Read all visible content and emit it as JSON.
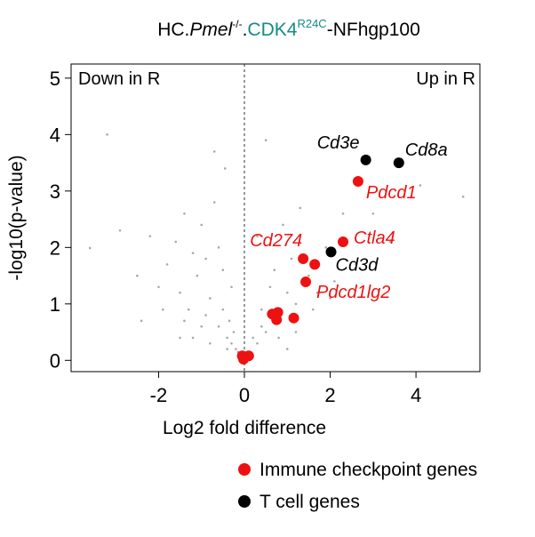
{
  "chart_data": {
    "type": "scatter",
    "title_parts": [
      "HC.",
      "Pmel",
      "-/-",
      ".",
      "CDK4",
      "R24C",
      "-NFhgp100"
    ],
    "title_colors": [
      "#000000",
      "#000000",
      "#000000",
      "#000000",
      "#138c84",
      "#138c84",
      "#000000"
    ],
    "xlabel": "Log2 fold difference",
    "ylabel": "-log10(p-value)",
    "annotations": [
      "Down in R",
      "Up in R"
    ],
    "xlim": [
      -4.04,
      5.49
    ],
    "ylim": [
      -0.2,
      5.25
    ],
    "xticks": [
      -2,
      0,
      2,
      4
    ],
    "yticks": [
      0,
      1,
      2,
      3,
      4,
      5
    ],
    "vline": 0,
    "series": [
      {
        "color": "#a9a9a9",
        "x": [
          -3.6,
          -3.2,
          -2.9,
          -2.5,
          -2.2,
          -2.0,
          -1.8,
          -1.6,
          -1.5,
          -1.4,
          -1.3,
          -1.2,
          -1.1,
          -1.0,
          -0.9,
          -0.8,
          -0.7,
          -0.6,
          -0.5,
          -0.45,
          -0.4,
          -0.35,
          -0.3,
          -0.25,
          -0.2,
          -0.15,
          -0.1,
          -0.6,
          -1.0,
          -1.4,
          -0.8,
          -0.3,
          -0.5,
          -1.9,
          -2.4,
          -0.7,
          -0.4,
          0.2,
          0.3,
          0.4,
          0.5,
          0.6,
          0.7,
          0.8,
          0.9,
          1.0,
          1.1,
          1.2,
          1.3,
          1.5,
          1.7,
          1.9,
          2.1,
          2.3,
          2.6,
          3.0,
          3.4,
          4.1,
          5.1,
          0.4,
          0.8,
          1.2,
          0.3,
          1.6,
          2.0,
          0.5,
          1.0,
          -0.9,
          -1.5,
          -1.2
        ],
        "values": [
          1.99,
          4.0,
          2.3,
          1.5,
          2.2,
          1.3,
          1.7,
          2.1,
          1.2,
          2.6,
          0.9,
          1.9,
          1.5,
          2.4,
          0.8,
          1.1,
          3.7,
          0.6,
          0.9,
          3.4,
          0.4,
          0.7,
          0.3,
          0.5,
          0.2,
          0.15,
          0.1,
          2.0,
          0.6,
          0.7,
          0.3,
          1.3,
          1.6,
          0.9,
          0.7,
          2.8,
          0.2,
          0.4,
          0.3,
          0.9,
          0.5,
          1.3,
          1.6,
          0.7,
          2.4,
          1.2,
          1.8,
          1.0,
          2.7,
          1.5,
          1.2,
          2.0,
          1.4,
          2.6,
          1.7,
          2.6,
          2.1,
          3.1,
          2.9,
          0.6,
          0.4,
          0.5,
          2.2,
          0.9,
          1.1,
          3.9,
          0.2,
          1.8,
          0.4,
          0.4
        ]
      },
      {
        "name": "Immune checkpoint genes",
        "color": "#ee1111",
        "x": [
          2.65,
          2.3,
          1.37,
          1.64,
          1.43,
          0.65,
          0.78,
          0.75,
          1.15,
          -0.05,
          0.1,
          -0.02
        ],
        "values": [
          3.17,
          2.1,
          1.8,
          1.7,
          1.39,
          0.82,
          0.85,
          0.72,
          0.75,
          0.08,
          0.08,
          0.02
        ],
        "labels": [
          "Pdcd1",
          "Ctla4",
          "Cd274",
          null,
          "Pdcd1lg2",
          null,
          null,
          null,
          null,
          null,
          null,
          null
        ]
      },
      {
        "name": "T cell genes",
        "color": "#000000",
        "x": [
          2.83,
          3.6,
          2.02
        ],
        "values": [
          3.55,
          3.5,
          1.92
        ],
        "labels": [
          "Cd3e",
          "Cd8a",
          "Cd3d"
        ]
      }
    ]
  }
}
